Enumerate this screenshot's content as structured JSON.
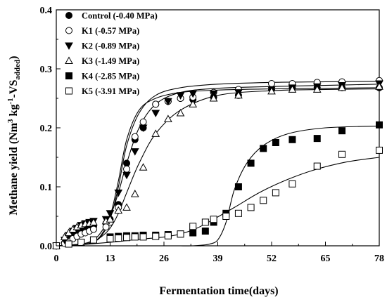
{
  "chart_data": {
    "type": "scatter",
    "xlabel": "Fermentation time(days)",
    "ylabel_main": "Methane yield (Nm",
    "ylabel_sup1": "3",
    "ylabel_mid": " kg",
    "ylabel_sup2": "-1",
    "ylabel_mid2": "-VS",
    "ylabel_sub": "added",
    "ylabel_end": ")",
    "xlim": [
      0,
      78
    ],
    "ylim": [
      0,
      0.4
    ],
    "xticks": [
      "0",
      "13",
      "26",
      "39",
      "52",
      "65",
      "78"
    ],
    "xtick_values": [
      0,
      13,
      26,
      39,
      52,
      65,
      78
    ],
    "yticks": [
      "0.0",
      "0.1",
      "0.2",
      "0.3",
      "0.4"
    ],
    "ytick_values": [
      0,
      0.1,
      0.2,
      0.3,
      0.4
    ],
    "legend_position": "top-left",
    "series": [
      {
        "name": "Control (-0.40 MPa)",
        "marker": "circle-filled",
        "x": [
          0,
          2,
          3,
          4,
          5,
          6,
          7,
          8,
          9,
          12,
          13,
          15,
          17,
          19,
          21,
          24,
          27,
          30,
          33,
          38,
          44,
          52,
          57,
          63,
          69,
          78
        ],
        "y": [
          0.0,
          0.005,
          0.01,
          0.015,
          0.02,
          0.025,
          0.028,
          0.03,
          0.033,
          0.038,
          0.045,
          0.07,
          0.14,
          0.18,
          0.2,
          0.24,
          0.245,
          0.25,
          0.248,
          0.252,
          0.255,
          0.265,
          0.268,
          0.268,
          0.268,
          0.268
        ],
        "fit": [
          0.0,
          0.002,
          0.007,
          0.02,
          0.05,
          0.11,
          0.18,
          0.23,
          0.25,
          0.26,
          0.264,
          0.266,
          0.267,
          0.268
        ],
        "fit_x": [
          0,
          6,
          9,
          11,
          13,
          15,
          17,
          20,
          24,
          30,
          39,
          52,
          65,
          78
        ]
      },
      {
        "name": "K1 (-0.57 MPa)",
        "marker": "circle-open",
        "x": [
          0,
          2,
          3,
          4,
          5,
          6,
          7,
          8,
          9,
          12,
          13,
          15,
          17,
          19,
          21,
          24,
          27,
          30,
          33,
          38,
          44,
          52,
          57,
          63,
          69,
          78
        ],
        "y": [
          0.0,
          0.004,
          0.008,
          0.012,
          0.016,
          0.02,
          0.022,
          0.025,
          0.028,
          0.032,
          0.04,
          0.065,
          0.13,
          0.185,
          0.21,
          0.24,
          0.245,
          0.25,
          0.252,
          0.26,
          0.265,
          0.275,
          0.275,
          0.277,
          0.278,
          0.28
        ],
        "fit": [
          0.0,
          0.002,
          0.006,
          0.018,
          0.045,
          0.1,
          0.17,
          0.225,
          0.255,
          0.268,
          0.274,
          0.277,
          0.278,
          0.279
        ],
        "fit_x": [
          0,
          6,
          9,
          11,
          13,
          15,
          17,
          20,
          24,
          30,
          39,
          52,
          65,
          78
        ]
      },
      {
        "name": "K2 (-0.89 MPa)",
        "marker": "triangle-down-filled",
        "x": [
          0,
          2,
          3,
          4,
          5,
          6,
          7,
          8,
          9,
          12,
          13,
          15,
          17,
          19,
          21,
          24,
          27,
          30,
          33,
          38,
          44,
          52,
          57,
          63,
          69,
          78
        ],
        "y": [
          0.0,
          0.01,
          0.018,
          0.025,
          0.03,
          0.035,
          0.038,
          0.04,
          0.042,
          0.045,
          0.055,
          0.09,
          0.12,
          0.16,
          0.2,
          0.225,
          0.245,
          0.255,
          0.258,
          0.258,
          0.26,
          0.265,
          0.268,
          0.27,
          0.272,
          0.275
        ],
        "fit": [
          0.0,
          0.003,
          0.01,
          0.025,
          0.05,
          0.09,
          0.14,
          0.2,
          0.24,
          0.26,
          0.267,
          0.27,
          0.272,
          0.274
        ],
        "fit_x": [
          0,
          6,
          9,
          11,
          13,
          15,
          17,
          20,
          24,
          30,
          39,
          52,
          65,
          78
        ]
      },
      {
        "name": "K3 (-1.49 MPa)",
        "marker": "triangle-up-open",
        "x": [
          0,
          2,
          3,
          4,
          5,
          6,
          7,
          8,
          9,
          12,
          13,
          15,
          17,
          19,
          21,
          24,
          27,
          30,
          33,
          38,
          44,
          52,
          57,
          63,
          69,
          78
        ],
        "y": [
          0.0,
          0.015,
          0.022,
          0.028,
          0.032,
          0.035,
          0.037,
          0.038,
          0.04,
          0.042,
          0.045,
          0.06,
          0.065,
          0.088,
          0.133,
          0.19,
          0.215,
          0.225,
          0.24,
          0.25,
          0.255,
          0.262,
          0.265,
          0.265,
          0.268,
          0.27
        ],
        "fit": [
          0.0,
          0.003,
          0.008,
          0.016,
          0.03,
          0.055,
          0.09,
          0.14,
          0.19,
          0.23,
          0.255,
          0.263,
          0.265,
          0.266
        ],
        "fit_x": [
          0,
          6,
          9,
          11,
          13,
          15,
          17,
          20,
          24,
          30,
          39,
          52,
          65,
          78
        ]
      },
      {
        "name": "K4 (-2.85 MPa)",
        "marker": "square-filled",
        "x": [
          0,
          3,
          6,
          9,
          13,
          15,
          17,
          19,
          21,
          24,
          27,
          30,
          33,
          36,
          38,
          41,
          44,
          47,
          50,
          53,
          57,
          63,
          69,
          78
        ],
        "y": [
          0.0,
          0.003,
          0.006,
          0.01,
          0.015,
          0.016,
          0.017,
          0.017,
          0.018,
          0.018,
          0.019,
          0.02,
          0.022,
          0.025,
          0.04,
          0.055,
          0.1,
          0.14,
          0.165,
          0.175,
          0.18,
          0.182,
          0.195,
          0.205
        ],
        "fit": [
          0.0,
          0.0,
          0.001,
          0.003,
          0.01,
          0.04,
          0.095,
          0.14,
          0.17,
          0.19,
          0.2,
          0.203
        ],
        "fit_x": [
          30,
          33,
          35,
          37,
          39,
          41,
          43,
          46,
          50,
          56,
          65,
          78
        ]
      },
      {
        "name": "K5 (-3.91 MPa)",
        "marker": "square-open",
        "x": [
          0,
          3,
          6,
          9,
          13,
          15,
          17,
          19,
          21,
          24,
          27,
          30,
          33,
          36,
          38,
          41,
          44,
          47,
          50,
          53,
          57,
          63,
          69,
          78
        ],
        "y": [
          0.0,
          0.003,
          0.006,
          0.01,
          0.012,
          0.013,
          0.014,
          0.015,
          0.015,
          0.016,
          0.017,
          0.02,
          0.033,
          0.04,
          0.045,
          0.05,
          0.055,
          0.065,
          0.077,
          0.09,
          0.105,
          0.135,
          0.155,
          0.162
        ],
        "fit": [
          0.0,
          0.002,
          0.006,
          0.011,
          0.015,
          0.02,
          0.03,
          0.045,
          0.065,
          0.09,
          0.11,
          0.128,
          0.142,
          0.15
        ],
        "fit_x": [
          0,
          6,
          13,
          20,
          26,
          30,
          34,
          38,
          43,
          49,
          55,
          62,
          70,
          78
        ]
      }
    ]
  }
}
